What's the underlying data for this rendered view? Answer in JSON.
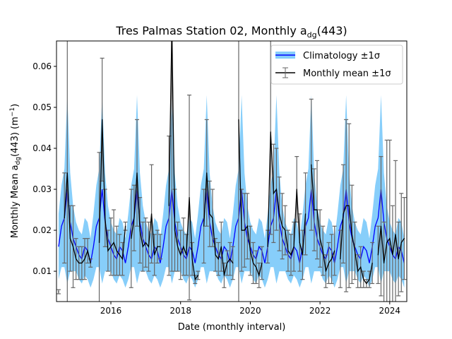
{
  "chart_data": {
    "type": "line",
    "title": {
      "prefix": "Tres Palmas Station 02, Monthly a",
      "sub": "dg",
      "suffix": "(443)"
    },
    "xlabel": "Date (monthly interval)",
    "ylabel": {
      "prefix": "Monthly Mean a",
      "sub": "dg",
      "mid": "(443) (m",
      "sup": "−1",
      "suffix": ")"
    },
    "xlim": [
      2014.44,
      2024.49
    ],
    "ylim": [
      0.0026,
      0.0662
    ],
    "xticks": [
      2016,
      2018,
      2020,
      2022,
      2024
    ],
    "yticks": [
      "0.01",
      "0.02",
      "0.03",
      "0.04",
      "0.05",
      "0.06"
    ],
    "legend": {
      "placement": "top-right",
      "entries": [
        "Climatology ±1σ",
        "Monthly mean ±1σ"
      ]
    },
    "colors": {
      "climatology": "#0000ff",
      "band": "#87cefa",
      "monthly": "#000000",
      "errorbar": "#666666"
    },
    "climatology": {
      "by_calendar_month_mean": [
        0.016,
        0.014,
        0.013,
        0.016,
        0.015,
        0.012,
        0.016,
        0.021,
        0.023,
        0.03,
        0.022,
        0.018
      ],
      "by_calendar_month_std": [
        0.006,
        0.006,
        0.006,
        0.007,
        0.007,
        0.006,
        0.008,
        0.01,
        0.012,
        0.023,
        0.012,
        0.008
      ]
    },
    "monthly": {
      "start": "2014-07",
      "mean": [
        0.005,
        null,
        0.023,
        0.034,
        0.018,
        0.016,
        0.013,
        0.012,
        0.012,
        0.013,
        0.015,
        0.012,
        null,
        null,
        0.017,
        0.047,
        0.023,
        0.015,
        0.016,
        0.017,
        0.015,
        0.014,
        0.013,
        0.021,
        null,
        0.018,
        0.023,
        0.034,
        0.02,
        0.016,
        0.017,
        0.016,
        0.024,
        0.014,
        0.016,
        0.016,
        null,
        null,
        0.026,
        0.07,
        0.02,
        0.016,
        0.014,
        0.016,
        0.014,
        0.028,
        0.013,
        0.008,
        0.009,
        null,
        0.021,
        0.034,
        0.024,
        0.023,
        0.014,
        0.013,
        0.016,
        0.009,
        0.012,
        0.013,
        0.012,
        null,
        0.047,
        0.02,
        0.02,
        0.021,
        0.015,
        0.012,
        0.011,
        0.009,
        0.012,
        null,
        0.016,
        0.044,
        0.029,
        0.03,
        0.024,
        0.021,
        0.02,
        0.015,
        0.014,
        0.016,
        0.03,
        0.017,
        0.014,
        0.024,
        null,
        0.036,
        0.025,
        0.025,
        0.018,
        0.015,
        0.01,
        0.012,
        0.013,
        0.015,
        null,
        0.013,
        0.024,
        0.026,
        0.026,
        0.019,
        0.015,
        0.01,
        0.011,
        0.008,
        0.007,
        0.008,
        0.012,
        null,
        0.014,
        0.021,
        0.012,
        0.017,
        0.018,
        0.014,
        0.019,
        0.013,
        0.017,
        0.018
      ],
      "std": [
        0.0005,
        null,
        0.011,
        0.1,
        0.008,
        0.01,
        0.005,
        0.004,
        0.004,
        0.005,
        0.003,
        0.001,
        null,
        null,
        0.022,
        0.015,
        0.007,
        0.005,
        0.007,
        0.008,
        0.006,
        0.005,
        0.004,
        0.001,
        null,
        0.012,
        0.008,
        0.013,
        0.008,
        0.006,
        0.006,
        0.006,
        0.012,
        0.005,
        0.004,
        0.003,
        null,
        null,
        0.017,
        0.06,
        0.01,
        0.006,
        0.006,
        0.007,
        0.005,
        0.025,
        0.004,
        0.001,
        0.001,
        null,
        0.009,
        0.013,
        0.008,
        0.007,
        0.004,
        0.004,
        0.006,
        0.003,
        0.003,
        0.004,
        0.004,
        null,
        0.1,
        0.01,
        0.009,
        0.008,
        0.006,
        0.005,
        0.004,
        0.003,
        0.004,
        null,
        0.004,
        0.025,
        0.012,
        0.01,
        0.009,
        0.008,
        0.006,
        0.005,
        0.005,
        0.006,
        0.008,
        0.007,
        0.006,
        0.01,
        null,
        0.016,
        0.01,
        0.012,
        0.007,
        0.006,
        0.004,
        0.005,
        0.006,
        0.006,
        null,
        0.007,
        0.012,
        0.021,
        0.02,
        0.012,
        0.007,
        0.004,
        0.005,
        0.002,
        0.001,
        0.002,
        0.005,
        null,
        0.007,
        0.017,
        0.01,
        0.025,
        0.024,
        0.012,
        0.018,
        0.009,
        0.012,
        0.01
      ]
    }
  }
}
